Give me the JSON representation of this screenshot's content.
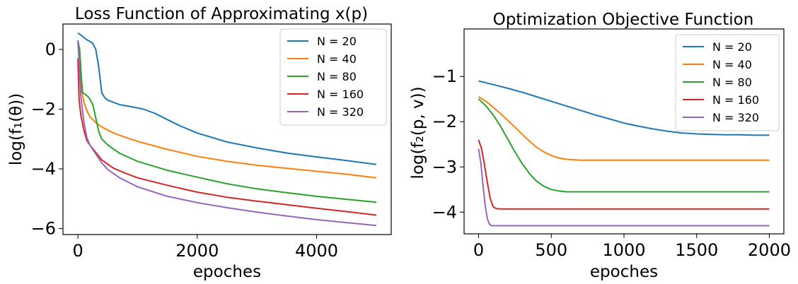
{
  "colors": {
    "N20": "#1f77b4",
    "N40": "#ff7f0e",
    "N80": "#2ca02c",
    "N160": "#d62728",
    "N320": "#9467bd"
  },
  "chart_data": [
    {
      "type": "line",
      "title": "Loss Function of Approximating x(p)",
      "xlabel": "epoches",
      "ylabel": "log(f₁(θ))",
      "xlim": [
        -250,
        5250
      ],
      "ylim": [
        -6.2,
        0.85
      ],
      "xticks": [
        0,
        2000,
        4000
      ],
      "yticks": [
        0,
        -2,
        -4,
        -6
      ],
      "xtick_labels": [
        "0",
        "2000",
        "4000"
      ],
      "ytick_labels": [
        "0",
        "−2",
        "−4",
        "−6"
      ],
      "legend_position": "top-right",
      "series": [
        {
          "name": "N = 20",
          "color": "#1f77b4",
          "x": [
            0,
            50,
            100,
            150,
            200,
            250,
            300,
            350,
            400,
            450,
            500,
            700,
            900,
            1100,
            1300,
            1500,
            1700,
            2000,
            2500,
            3000,
            3500,
            4000,
            4500,
            5000
          ],
          "y": [
            0.55,
            0.48,
            0.4,
            0.32,
            0.27,
            0.2,
            0.0,
            -0.6,
            -1.45,
            -1.62,
            -1.7,
            -1.85,
            -1.92,
            -2.0,
            -2.15,
            -2.35,
            -2.55,
            -2.8,
            -3.1,
            -3.3,
            -3.47,
            -3.6,
            -3.72,
            -3.85
          ]
        },
        {
          "name": "N = 40",
          "color": "#ff7f0e",
          "x": [
            0,
            20,
            40,
            70,
            100,
            150,
            200,
            300,
            400,
            600,
            800,
            1000,
            1500,
            2000,
            2500,
            3000,
            3500,
            4000,
            4500,
            5000
          ],
          "y": [
            0.3,
            -0.3,
            -1.0,
            -1.45,
            -1.75,
            -2.05,
            -2.25,
            -2.45,
            -2.6,
            -2.8,
            -2.95,
            -3.08,
            -3.35,
            -3.58,
            -3.75,
            -3.88,
            -3.98,
            -4.08,
            -4.18,
            -4.3
          ]
        },
        {
          "name": "N = 80",
          "color": "#2ca02c",
          "x": [
            0,
            30,
            60,
            80,
            120,
            180,
            250,
            300,
            350,
            400,
            500,
            700,
            1000,
            1500,
            2000,
            2500,
            3000,
            3500,
            4000,
            4500,
            5000
          ],
          "y": [
            0.3,
            0.0,
            -1.0,
            -1.45,
            -1.5,
            -1.6,
            -1.85,
            -2.3,
            -2.75,
            -3.0,
            -3.2,
            -3.48,
            -3.75,
            -4.05,
            -4.28,
            -4.5,
            -4.67,
            -4.8,
            -4.92,
            -5.02,
            -5.12
          ]
        },
        {
          "name": "N = 160",
          "color": "#d62728",
          "x": [
            0,
            20,
            50,
            100,
            150,
            200,
            300,
            400,
            600,
            800,
            1000,
            1500,
            2000,
            2500,
            3000,
            3500,
            4000,
            4500,
            5000
          ],
          "y": [
            -0.3,
            -1.7,
            -2.2,
            -2.7,
            -3.05,
            -3.2,
            -3.45,
            -3.7,
            -3.98,
            -4.15,
            -4.3,
            -4.55,
            -4.78,
            -4.95,
            -5.08,
            -5.2,
            -5.32,
            -5.43,
            -5.55
          ]
        },
        {
          "name": "N = 320",
          "color": "#9467bd",
          "x": [
            0,
            20,
            50,
            100,
            150,
            200,
            300,
            400,
            500,
            700,
            1000,
            1500,
            2000,
            2500,
            3000,
            3500,
            4000,
            4500,
            5000
          ],
          "y": [
            0.3,
            -0.4,
            -1.6,
            -2.4,
            -2.95,
            -3.2,
            -3.5,
            -3.8,
            -4.02,
            -4.3,
            -4.6,
            -4.92,
            -5.13,
            -5.3,
            -5.45,
            -5.58,
            -5.7,
            -5.8,
            -5.9
          ]
        }
      ]
    },
    {
      "type": "line",
      "title": "Optimization Objective Function",
      "xlabel": "epoches",
      "ylabel": "log(f₂(p, v))",
      "xlim": [
        -100,
        2100
      ],
      "ylim": [
        -4.48,
        0.05
      ],
      "xticks": [
        0,
        500,
        1000,
        1500,
        2000
      ],
      "yticks": [
        -1,
        -2,
        -3,
        -4
      ],
      "xtick_labels": [
        "0",
        "500",
        "1000",
        "1500",
        "2000"
      ],
      "ytick_labels": [
        "−1",
        "−2",
        "−3",
        "−4"
      ],
      "legend_position": "top-right",
      "series": [
        {
          "name": "N = 20",
          "color": "#1f77b4",
          "x": [
            0,
            100,
            200,
            300,
            400,
            500,
            600,
            700,
            800,
            900,
            1000,
            1100,
            1200,
            1300,
            1400,
            1500,
            1600,
            1700,
            1800,
            1900,
            2000
          ],
          "y": [
            -1.1,
            -1.18,
            -1.26,
            -1.35,
            -1.45,
            -1.55,
            -1.65,
            -1.75,
            -1.85,
            -1.94,
            -2.03,
            -2.1,
            -2.16,
            -2.21,
            -2.25,
            -2.27,
            -2.28,
            -2.29,
            -2.29,
            -2.3,
            -2.3
          ]
        },
        {
          "name": "N = 40",
          "color": "#ff7f0e",
          "x": [
            0,
            50,
            100,
            150,
            200,
            250,
            300,
            350,
            400,
            450,
            500,
            550,
            600,
            700,
            800,
            1000,
            1500,
            2000
          ],
          "y": [
            -1.45,
            -1.55,
            -1.68,
            -1.82,
            -1.97,
            -2.12,
            -2.28,
            -2.43,
            -2.57,
            -2.67,
            -2.75,
            -2.8,
            -2.83,
            -2.85,
            -2.85,
            -2.85,
            -2.85,
            -2.85
          ]
        },
        {
          "name": "N = 80",
          "color": "#2ca02c",
          "x": [
            0,
            50,
            100,
            150,
            200,
            250,
            300,
            350,
            400,
            450,
            500,
            550,
            600,
            650,
            700,
            800,
            1000,
            1500,
            2000
          ],
          "y": [
            -1.5,
            -1.65,
            -1.85,
            -2.1,
            -2.38,
            -2.67,
            -2.93,
            -3.15,
            -3.32,
            -3.43,
            -3.5,
            -3.53,
            -3.55,
            -3.55,
            -3.55,
            -3.55,
            -3.55,
            -3.55,
            -3.55
          ]
        },
        {
          "name": "N = 160",
          "color": "#d62728",
          "x": [
            0,
            20,
            40,
            60,
            80,
            100,
            120,
            150,
            200,
            300,
            500,
            1000,
            1500,
            2000
          ],
          "y": [
            -2.4,
            -2.6,
            -2.95,
            -3.35,
            -3.7,
            -3.88,
            -3.92,
            -3.93,
            -3.93,
            -3.93,
            -3.93,
            -3.93,
            -3.93,
            -3.93
          ]
        },
        {
          "name": "N = 320",
          "color": "#9467bd",
          "x": [
            0,
            15,
            30,
            45,
            60,
            75,
            90,
            100,
            150,
            300,
            1000,
            2000
          ],
          "y": [
            -2.6,
            -2.9,
            -3.4,
            -3.85,
            -4.15,
            -4.27,
            -4.3,
            -4.3,
            -4.3,
            -4.3,
            -4.3,
            -4.3
          ]
        }
      ]
    }
  ]
}
